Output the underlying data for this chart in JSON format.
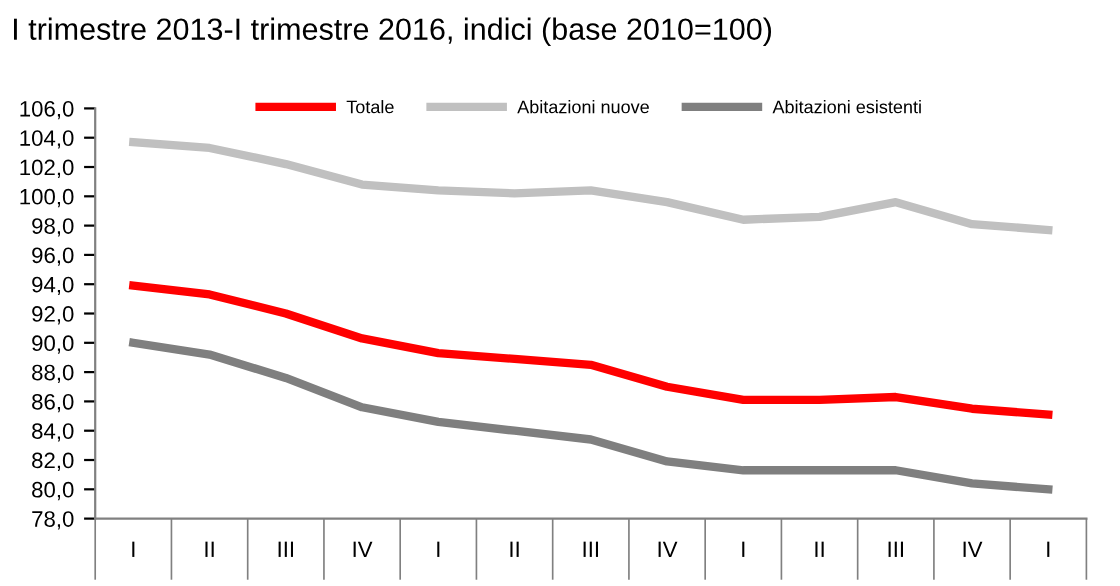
{
  "chart_data": {
    "type": "line",
    "title": "I trimestre 2013-I trimestre 2016, indici (base 2010=100)",
    "categories": [
      "I",
      "II",
      "III",
      "IV",
      "I",
      "II",
      "III",
      "IV",
      "I",
      "II",
      "III",
      "IV",
      "I"
    ],
    "series": [
      {
        "name": "Totale",
        "color": "#ff0000",
        "values": [
          93.9,
          93.3,
          92.0,
          90.3,
          89.3,
          88.9,
          88.5,
          87.0,
          86.1,
          86.1,
          86.3,
          85.5,
          85.1
        ]
      },
      {
        "name": "Abitazioni nuove",
        "color": "#c0c0c0",
        "values": [
          103.7,
          103.3,
          102.2,
          100.8,
          100.4,
          100.2,
          100.4,
          99.6,
          98.4,
          98.6,
          99.6,
          98.1,
          97.7
        ]
      },
      {
        "name": "Abitazioni esistenti",
        "color": "#7f7f7f",
        "values": [
          90.0,
          89.2,
          87.6,
          85.6,
          84.6,
          84.0,
          83.4,
          81.9,
          81.3,
          81.3,
          81.3,
          80.4,
          80.0
        ]
      }
    ],
    "ylim": [
      78,
      106
    ],
    "yticks": [
      {
        "value": 78,
        "label": "78,0"
      },
      {
        "value": 80,
        "label": "80,0"
      },
      {
        "value": 82,
        "label": "82,0"
      },
      {
        "value": 84,
        "label": "84,0"
      },
      {
        "value": 86,
        "label": "86,0"
      },
      {
        "value": 88,
        "label": "88,0"
      },
      {
        "value": 90,
        "label": "90,0"
      },
      {
        "value": 92,
        "label": "92,0"
      },
      {
        "value": 94,
        "label": "94,0"
      },
      {
        "value": 96,
        "label": "96,0"
      },
      {
        "value": 98,
        "label": "98,0"
      },
      {
        "value": 100,
        "label": "100,0"
      },
      {
        "value": 102,
        "label": "102,0"
      },
      {
        "value": 104,
        "label": "104,0"
      },
      {
        "value": 106,
        "label": "106,0"
      }
    ],
    "grid": false,
    "legend": "top",
    "marker": "none",
    "line_style": "solid"
  }
}
